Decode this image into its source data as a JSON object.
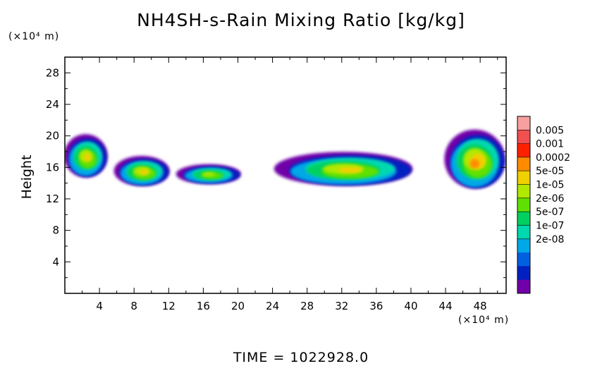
{
  "chart_data": {
    "type": "heatmap",
    "title": "NH4SH-s-Rain Mixing Ratio [kg/kg]",
    "ylabel": "Height",
    "y_unit": "(×10⁴ m)",
    "x_unit": "(×10⁴ m)",
    "xlim": [
      0,
      51
    ],
    "ylim": [
      0,
      30
    ],
    "x_ticks": [
      4,
      8,
      12,
      16,
      20,
      24,
      28,
      32,
      36,
      40,
      44,
      48
    ],
    "y_ticks": [
      4,
      8,
      12,
      16,
      20,
      24,
      28
    ],
    "colorbar": {
      "labels": [
        "0.005",
        "0.001",
        "0.0002",
        "5e-05",
        "1e-05",
        "2e-06",
        "5e-07",
        "1e-07",
        "2e-08"
      ],
      "colors": [
        "#f7a0a0",
        "#f05050",
        "#ff2000",
        "#ff8c00",
        "#f0d000",
        "#b0e800",
        "#60e000",
        "#00d060",
        "#00d8b0",
        "#00a8e8",
        "#0060e0",
        "#0020c0",
        "#7000a8"
      ]
    },
    "regions": [
      {
        "x": [
          0,
          5
        ],
        "y": [
          14.5,
          20
        ],
        "peak": "5e-05"
      },
      {
        "x": [
          5.8,
          12.2
        ],
        "y": [
          13.5,
          17.3
        ],
        "peak": "5e-05"
      },
      {
        "x": [
          13,
          20.5
        ],
        "y": [
          13.8,
          16.3
        ],
        "peak": "1e-05"
      },
      {
        "x": [
          24.5,
          40.5
        ],
        "y": [
          13.5,
          17.8
        ],
        "peak": "5e-05"
      },
      {
        "x": [
          44,
          51
        ],
        "y": [
          13,
          20.5
        ],
        "peak": "0.0002"
      }
    ]
  },
  "time_label": "TIME  =  1022928.0"
}
